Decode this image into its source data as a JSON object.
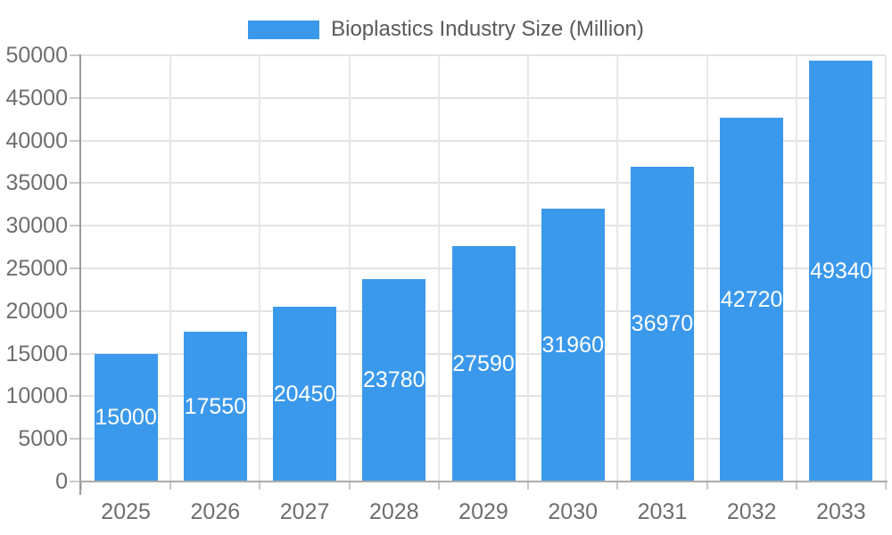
{
  "legend": {
    "label": "Bioplastics Industry Size (Million)"
  },
  "colors": {
    "bar": "#3B99EC",
    "bar_label_text": "#FFFFFF",
    "axis_text": "#6E6E6E",
    "legend_text": "#58595B",
    "gridline_h": "#E3E3E3",
    "gridline_v": "#E8E8E8",
    "tick": "#C9C9C9",
    "baseline": "#ABABAB",
    "y_axis_line": "#9B9B9B",
    "background": "#FFFFFF"
  },
  "chart_data": {
    "type": "bar",
    "title": "Bioplastics Industry Size (Million)",
    "categories": [
      "2025",
      "2026",
      "2027",
      "2028",
      "2029",
      "2030",
      "2031",
      "2032",
      "2033"
    ],
    "values": [
      15000,
      17550,
      20450,
      23780,
      27590,
      31960,
      36970,
      42720,
      49340
    ],
    "series": [
      {
        "name": "Bioplastics Industry Size (Million)",
        "values": [
          15000,
          17550,
          20450,
          23780,
          27590,
          31960,
          36970,
          42720,
          49340
        ]
      }
    ],
    "data_labels": [
      "15000",
      "17550",
      "20450",
      "23780",
      "27590",
      "31960",
      "36970",
      "42720",
      "49340"
    ],
    "xlabel": "",
    "ylabel": "",
    "ylim": [
      0,
      50000
    ],
    "y_ticks": [
      0,
      5000,
      10000,
      15000,
      20000,
      25000,
      30000,
      35000,
      40000,
      45000,
      50000
    ],
    "grid": true,
    "legend_position": "top",
    "data_label_position": "inside-middle"
  }
}
